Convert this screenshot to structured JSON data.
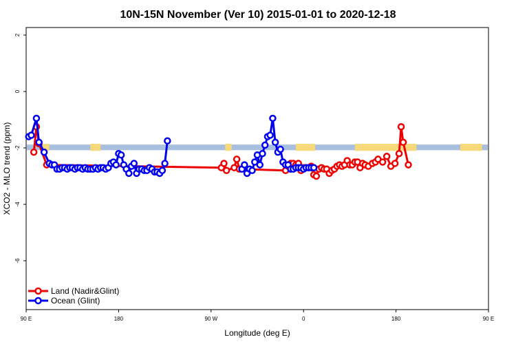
{
  "chart_data": {
    "type": "line",
    "title": "10N-15N November (Ver 10)   2015-01-01 to 2020-12-18",
    "xlabel": "Longitude (deg E)",
    "ylabel": "XCO2 - MLO trend (ppm)",
    "xlim": [
      90,
      450
    ],
    "ylim": [
      -8,
      2.3
    ],
    "x_ticks": [
      {
        "value": 90,
        "label": "90 E"
      },
      {
        "value": 180,
        "label": "180"
      },
      {
        "value": 270,
        "label": "90 W"
      },
      {
        "value": 360,
        "label": "0"
      },
      {
        "value": 450,
        "label": "180"
      },
      {
        "value": 540,
        "label": "90 E"
      }
    ],
    "y_ticks": [
      {
        "value": 2,
        "label": "2"
      },
      {
        "value": 0,
        "label": "0"
      },
      {
        "value": -2,
        "label": "-2"
      },
      {
        "value": -4,
        "label": "-4"
      },
      {
        "value": -6,
        "label": "-6"
      }
    ],
    "grid": false,
    "legend_position": "bottom-left",
    "colors": {
      "land": "#ee0000",
      "ocean": "#0000ee",
      "band_ocean": "#a8bfe0",
      "band_land": "#f5d97a"
    },
    "band": {
      "y_top": -1.88,
      "y_bottom": -2.08
    },
    "land_segments": [
      [
        103,
        108
      ],
      [
        140,
        148
      ],
      [
        245,
        250
      ],
      [
        300,
        315
      ],
      [
        346,
        394
      ],
      [
        428,
        445
      ],
      [
        555,
        566
      ],
      [
        590,
        600
      ],
      [
        622,
        628
      ]
    ],
    "series": [
      {
        "name": "Land (Nadir&Glint)",
        "color": "#ee0000",
        "points": [
          [
            97.5,
            -2.15
          ],
          [
            100,
            -1.25
          ],
          [
            102.5,
            -1.85
          ],
          [
            110,
            -2.6
          ],
          [
            280,
            -2.7
          ],
          [
            282.5,
            -2.55
          ],
          [
            285,
            -2.8
          ],
          [
            292.5,
            -2.7
          ],
          [
            295,
            -2.4
          ],
          [
            297.5,
            -2.75
          ],
          [
            342.5,
            -2.8
          ],
          [
            345,
            -2.65
          ],
          [
            347.5,
            -2.55
          ],
          [
            350,
            -2.55
          ],
          [
            352.5,
            -2.6
          ],
          [
            355,
            -2.55
          ],
          [
            357.5,
            -2.8
          ],
          [
            360,
            -2.7
          ],
          [
            362.5,
            -2.7
          ],
          [
            365,
            -2.7
          ],
          [
            367.5,
            -2.65
          ],
          [
            370,
            -2.95
          ],
          [
            372.5,
            -3.0
          ],
          [
            375,
            -2.75
          ],
          [
            377.5,
            -2.7
          ],
          [
            380,
            -2.75
          ],
          [
            382.5,
            -2.75
          ],
          [
            385,
            -2.9
          ],
          [
            387.5,
            -2.8
          ],
          [
            390,
            -2.75
          ],
          [
            392.5,
            -2.65
          ],
          [
            395,
            -2.6
          ],
          [
            397.5,
            -2.65
          ],
          [
            400,
            -2.6
          ],
          [
            402.5,
            -2.45
          ],
          [
            405,
            -2.6
          ],
          [
            407.5,
            -2.6
          ],
          [
            410,
            -2.5
          ],
          [
            412.5,
            -2.5
          ],
          [
            415,
            -2.7
          ],
          [
            417.5,
            -2.55
          ],
          [
            420,
            -2.6
          ],
          [
            423,
            -2.65
          ],
          [
            427,
            -2.55
          ],
          [
            430,
            -2.5
          ],
          [
            432.5,
            -2.4
          ],
          [
            437,
            -2.5
          ],
          [
            441,
            -2.3
          ],
          [
            445,
            -2.65
          ],
          [
            449,
            -2.55
          ],
          [
            453,
            -2.2
          ],
          [
            455,
            -1.25
          ],
          [
            457,
            -1.8
          ],
          [
            462,
            -2.6
          ]
        ],
        "draw_as_points": [
          false
        ]
      },
      {
        "name": "Ocean (Glint)",
        "color": "#0000ee",
        "points": [
          [
            92.5,
            -1.6
          ],
          [
            95,
            -1.55
          ],
          [
            100,
            -0.95
          ],
          [
            102.5,
            -1.8
          ],
          [
            107.5,
            -2.15
          ],
          [
            112.5,
            -2.55
          ],
          [
            115,
            -2.6
          ],
          [
            117.5,
            -2.6
          ],
          [
            120,
            -2.75
          ],
          [
            122.5,
            -2.75
          ],
          [
            125,
            -2.7
          ],
          [
            127.5,
            -2.7
          ],
          [
            130,
            -2.75
          ],
          [
            132.5,
            -2.7
          ],
          [
            135,
            -2.7
          ],
          [
            137.5,
            -2.75
          ],
          [
            140,
            -2.7
          ],
          [
            142.5,
            -2.7
          ],
          [
            145,
            -2.75
          ],
          [
            147.5,
            -2.7
          ],
          [
            150,
            -2.75
          ],
          [
            152.5,
            -2.75
          ],
          [
            155,
            -2.75
          ],
          [
            157.5,
            -2.7
          ],
          [
            160,
            -2.75
          ],
          [
            162.5,
            -2.7
          ],
          [
            165,
            -2.7
          ],
          [
            167.5,
            -2.75
          ],
          [
            170,
            -2.7
          ],
          [
            172.5,
            -2.55
          ],
          [
            175,
            -2.5
          ],
          [
            177.5,
            -2.6
          ],
          [
            180,
            -2.2
          ],
          [
            182.5,
            -2.25
          ],
          [
            185,
            -2.6
          ],
          [
            187.5,
            -2.75
          ],
          [
            190,
            -2.9
          ],
          [
            192.5,
            -2.65
          ],
          [
            195,
            -2.55
          ],
          [
            197.5,
            -2.9
          ],
          [
            200,
            -2.75
          ],
          [
            202.5,
            -2.75
          ],
          [
            205,
            -2.8
          ],
          [
            207.5,
            -2.8
          ],
          [
            210,
            -2.7
          ],
          [
            212.5,
            -2.75
          ],
          [
            215,
            -2.85
          ],
          [
            217.5,
            -2.85
          ],
          [
            220,
            -2.9
          ],
          [
            222.5,
            -2.8
          ],
          [
            225,
            -2.55
          ],
          [
            227.5,
            -1.75
          ]
        ],
        "ocean_continued": [
          [
            300,
            -2.75
          ],
          [
            302.5,
            -2.6
          ],
          [
            305,
            -2.9
          ],
          [
            307.5,
            -2.75
          ],
          [
            310,
            -2.8
          ],
          [
            312.5,
            -2.5
          ],
          [
            315,
            -2.25
          ],
          [
            317.5,
            -2.6
          ],
          [
            320,
            -2.2
          ],
          [
            322.5,
            -1.9
          ],
          [
            325,
            -1.6
          ],
          [
            327.5,
            -1.55
          ],
          [
            330,
            -0.95
          ],
          [
            332.5,
            -1.8
          ],
          [
            335,
            -2.15
          ],
          [
            337.5,
            -2.05
          ],
          [
            340,
            -2.5
          ],
          [
            342.5,
            -2.6
          ],
          [
            345,
            -2.6
          ],
          [
            347.5,
            -2.75
          ],
          [
            350,
            -2.75
          ],
          [
            352.5,
            -2.7
          ],
          [
            355,
            -2.7
          ],
          [
            357.5,
            -2.7
          ],
          [
            360,
            -2.75
          ],
          [
            362.5,
            -2.7
          ],
          [
            365,
            -2.7
          ],
          [
            367.5,
            -2.7
          ],
          [
            370,
            -2.7
          ]
        ]
      }
    ]
  }
}
